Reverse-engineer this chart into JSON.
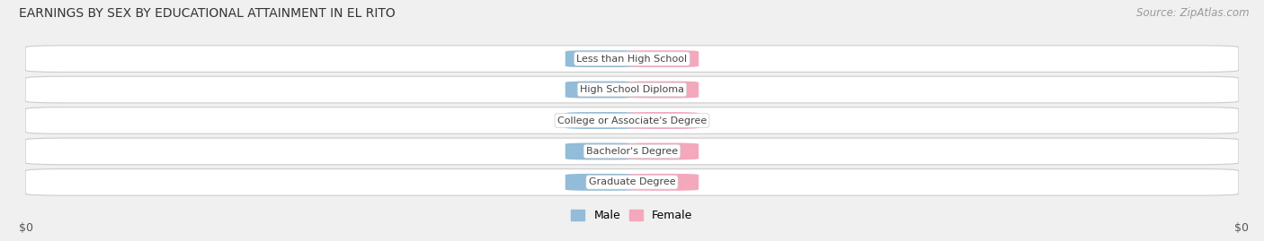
{
  "title": "EARNINGS BY SEX BY EDUCATIONAL ATTAINMENT IN EL RITO",
  "source": "Source: ZipAtlas.com",
  "categories": [
    "Less than High School",
    "High School Diploma",
    "College or Associate's Degree",
    "Bachelor's Degree",
    "Graduate Degree"
  ],
  "male_color": "#92bcd8",
  "female_color": "#f4a8bc",
  "bar_label_color": "#ffffff",
  "category_label_color": "#444444",
  "background_color": "#f0f0f0",
  "row_bg_color": "#e4e4e4",
  "row_edge_color": "#cccccc",
  "xlabel_left": "$0",
  "xlabel_right": "$0",
  "title_fontsize": 10,
  "source_fontsize": 8.5,
  "axis_label_fontsize": 9,
  "bar_label_fontsize": 7,
  "cat_label_fontsize": 8,
  "legend_labels": [
    "Male",
    "Female"
  ]
}
